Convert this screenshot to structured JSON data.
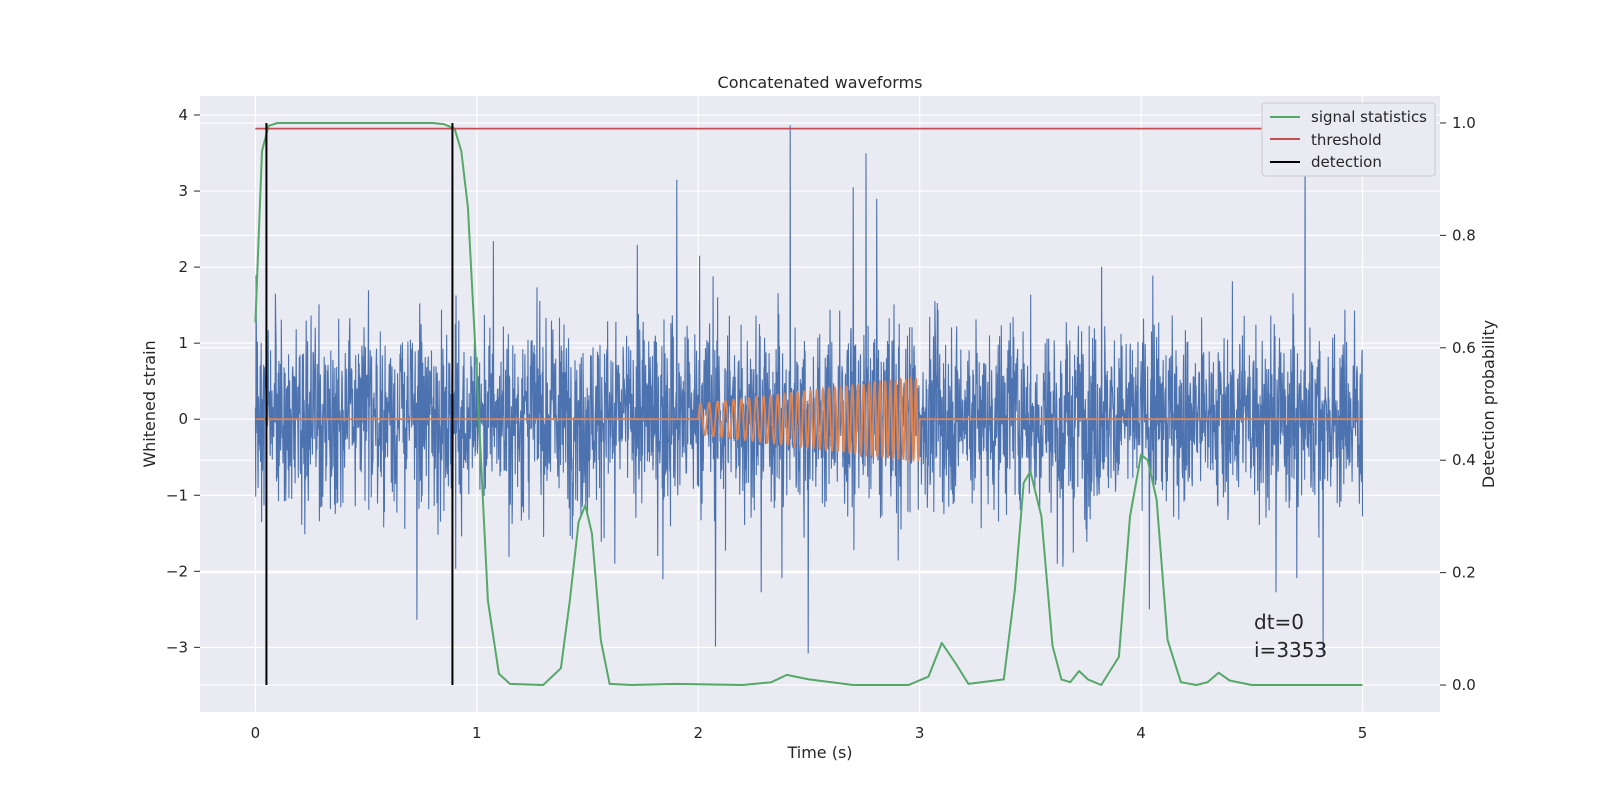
{
  "chart_data": {
    "type": "line",
    "title": "Concatenated waveforms",
    "xlabel": "Time (s)",
    "ylabel": "Whitened strain",
    "y2label": "Detection probability",
    "xlim": [
      -0.25,
      5.35
    ],
    "ylim": [
      -3.85,
      4.25
    ],
    "y2lim": [
      -0.048,
      1.048
    ],
    "xticks": [
      0,
      1,
      2,
      3,
      4,
      5
    ],
    "yticks": [
      -3,
      -2,
      -1,
      0,
      1,
      2,
      3,
      4
    ],
    "y2ticks": [
      0.0,
      0.2,
      0.4,
      0.6,
      0.8,
      1.0
    ],
    "y2tick_labels": [
      "0.0",
      "0.2",
      "0.4",
      "0.6",
      "0.8",
      "1.0"
    ],
    "ytick_labels": [
      "−3",
      "−2",
      "−1",
      "0",
      "1",
      "2",
      "3",
      "4"
    ],
    "grid": true,
    "legend_position": "top-right",
    "annotation": [
      "dt=0",
      "i=3353"
    ],
    "annotation_position": {
      "x": 4.5,
      "y": -2.75
    },
    "series": [
      {
        "name": "signal statistics",
        "axis": "right",
        "color": "#55a868",
        "x": [
          0.0,
          0.03,
          0.06,
          0.1,
          0.2,
          0.5,
          0.8,
          0.85,
          0.9,
          0.93,
          0.96,
          1.0,
          1.05,
          1.1,
          1.15,
          1.3,
          1.38,
          1.42,
          1.46,
          1.49,
          1.52,
          1.56,
          1.6,
          1.7,
          1.9,
          2.2,
          2.33,
          2.4,
          2.5,
          2.7,
          2.95,
          3.04,
          3.1,
          3.16,
          3.22,
          3.38,
          3.43,
          3.47,
          3.5,
          3.55,
          3.6,
          3.64,
          3.68,
          3.72,
          3.76,
          3.82,
          3.9,
          3.95,
          4.0,
          4.03,
          4.07,
          4.12,
          4.18,
          4.25,
          4.3,
          4.35,
          4.4,
          4.5,
          4.8,
          5.0
        ],
        "y": [
          0.645,
          0.95,
          0.995,
          1.0,
          1.0,
          1.0,
          1.0,
          0.998,
          0.99,
          0.95,
          0.85,
          0.55,
          0.15,
          0.02,
          0.002,
          0.0,
          0.03,
          0.15,
          0.29,
          0.32,
          0.27,
          0.08,
          0.002,
          0.0,
          0.002,
          0.0,
          0.005,
          0.018,
          0.01,
          0.0,
          0.0,
          0.015,
          0.075,
          0.04,
          0.002,
          0.01,
          0.17,
          0.36,
          0.38,
          0.3,
          0.07,
          0.01,
          0.005,
          0.025,
          0.01,
          0.0,
          0.05,
          0.3,
          0.41,
          0.4,
          0.33,
          0.08,
          0.005,
          0.0,
          0.005,
          0.022,
          0.008,
          0.0,
          0.0,
          0.0
        ]
      },
      {
        "name": "threshold",
        "axis": "right",
        "color": "#c44e52",
        "x": [
          0.0,
          5.0
        ],
        "y": [
          0.99,
          0.99
        ]
      },
      {
        "name": "detection",
        "axis": "right",
        "color": "#000000",
        "x_lines": [
          0.05,
          0.89
        ],
        "y_range": [
          0.0,
          1.0
        ]
      },
      {
        "name": "",
        "axis": "left",
        "color": "#4c72b0",
        "description_type": "noise",
        "x_range": [
          0.0,
          5.0
        ],
        "y_min": -3.2,
        "y_max": 3.9,
        "typical_range": [
          -1.8,
          2.2
        ]
      },
      {
        "name": "",
        "axis": "left",
        "color": "#dd8452",
        "description_type": "chirp",
        "x_range": [
          2.0,
          3.0
        ],
        "amplitude_start": 0.2,
        "amplitude_end": 0.55,
        "freq_start": 25,
        "freq_end": 45,
        "baseline": 0.0
      }
    ]
  }
}
